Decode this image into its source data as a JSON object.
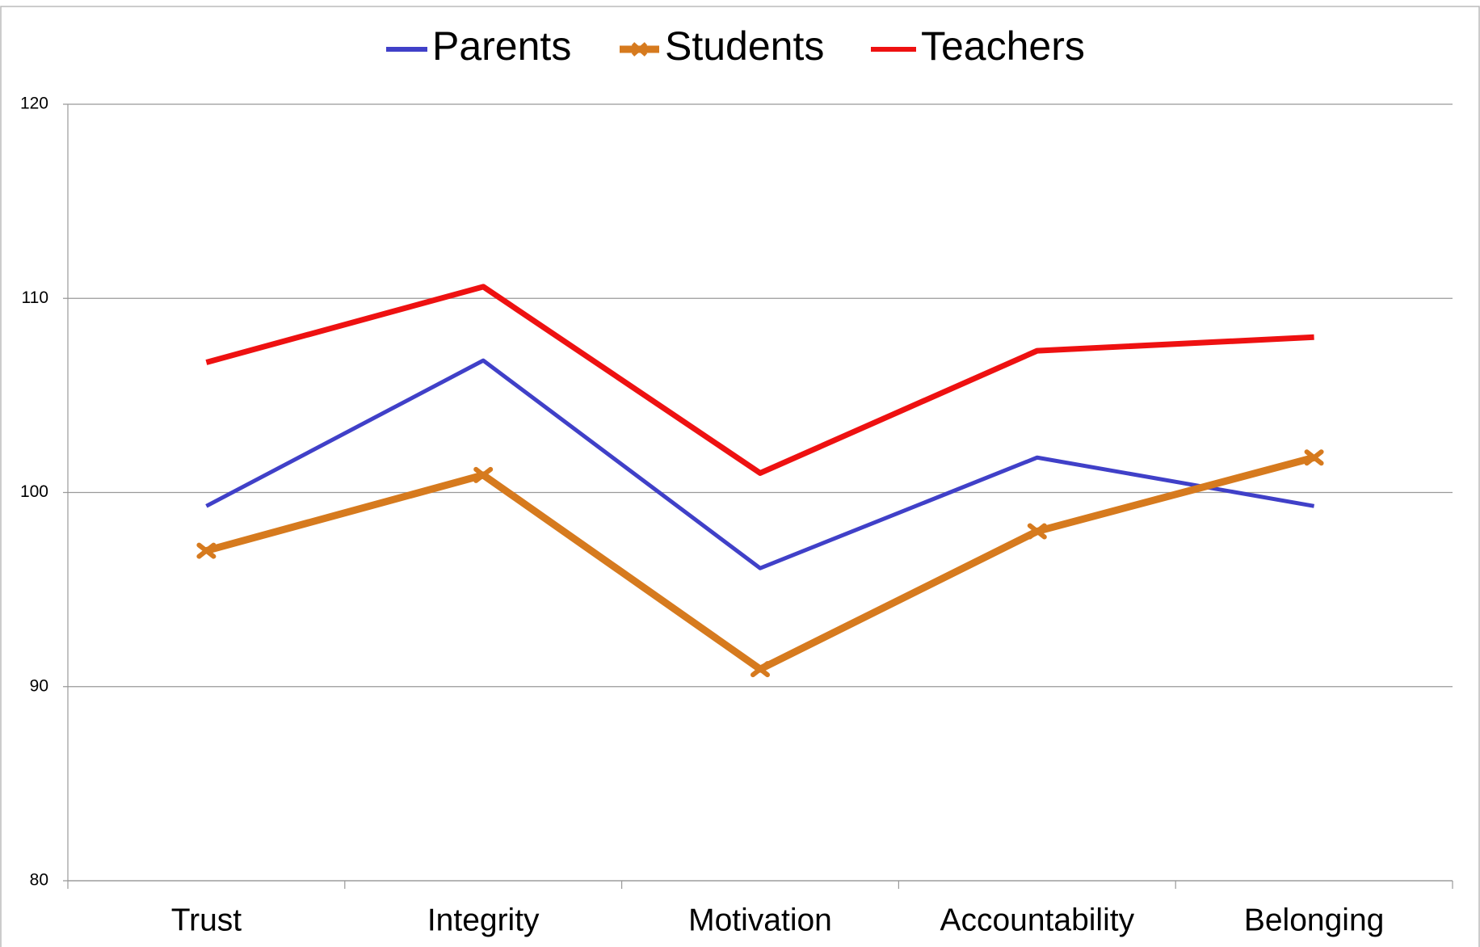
{
  "chart_data": {
    "type": "line",
    "categories": [
      "Trust",
      "Integrity",
      "Motivation",
      "Accountability",
      "Belonging"
    ],
    "series": [
      {
        "name": "Parents",
        "color": "#4040c8",
        "values": [
          99.3,
          106.8,
          96.1,
          101.8,
          99.3
        ]
      },
      {
        "name": "Students",
        "color": "#d67a1e",
        "values": [
          97.0,
          100.9,
          90.9,
          98.0,
          101.8
        ],
        "marker": true
      },
      {
        "name": "Teachers",
        "color": "#ee1111",
        "values": [
          106.7,
          110.6,
          101.0,
          107.3,
          108.0
        ]
      }
    ],
    "ylim": [
      80,
      120
    ],
    "yticks": [
      80,
      90,
      100,
      110,
      120
    ],
    "grid": true,
    "legend": "top"
  }
}
